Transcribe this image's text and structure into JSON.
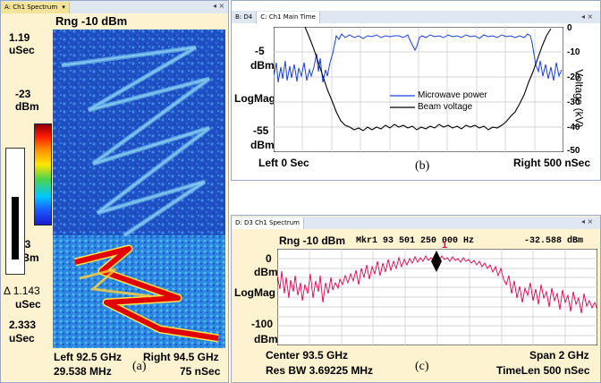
{
  "colors": {
    "tab_bar_bg": "#dfe7f2",
    "tab_active_bg": "#f4e39a",
    "panel_a_bg": "#fdf3d0",
    "panel_c_bg": "#fdf3d0",
    "spectro_bg": "#1b4fc0",
    "trace_blue": "#1a3fe0",
    "trace_black": "#000000",
    "trace_red": "#e0004a",
    "grid": "#c8c8c8"
  },
  "panel_a": {
    "tab": "A: Ch1 Spectrum",
    "tab_icon": "chevron-down-icon",
    "range_label": "Rng -10 dBm",
    "top_time_value": "1.19",
    "top_time_unit": "uSec",
    "scale_top_value": "-23",
    "scale_top_unit": "dBm",
    "scale_bottom_value": "-73",
    "scale_bottom_unit": "dBm",
    "delta_value": "Δ 1.143",
    "delta_unit": "uSec",
    "bottom_time_value": "2.333",
    "bottom_time_unit": "uSec",
    "left_freq": "Left 92.5 GHz",
    "left_rbw": "29.538 MHz",
    "right_freq": "Right 94.5 GHz",
    "right_time": "75 nSec",
    "caption": "(a)"
  },
  "panel_b": {
    "tabs": [
      "B: D4",
      "C: Ch1 Main Time"
    ],
    "close_glyph": "◂ ×",
    "left_top_value": "-5",
    "left_top_unit": "dBm",
    "left_mid": "LogMag",
    "left_bottom_value": "-55",
    "left_bottom_unit": "dBm",
    "right_ticks": [
      "0",
      "-10",
      "-20",
      "-30",
      "-40",
      "-50"
    ],
    "right_axis_label": "Voltage (kV)",
    "legend": [
      "Microwave power",
      "Beam voltage"
    ],
    "left_footer": "Left 0  Sec",
    "right_footer": "Right 500 nSec",
    "caption": "(b)"
  },
  "panel_c": {
    "tab": "D: D3 Ch1 Spectrum",
    "close_glyph": "◂ ×",
    "header_left": "Rng -10 dBm",
    "header_mkr": "Mkr1   93 501 250 000 Hz",
    "header_right": "-32.588 dBm",
    "top_value": "0",
    "top_unit": "dBm",
    "mid_label": "LogMag",
    "bottom_value": "-100",
    "bottom_unit": "dBm",
    "marker_label": "1",
    "center_freq": "Center 93.5 GHz",
    "res_bw": "Res BW 3.69225 MHz",
    "span": "Span 2 GHz",
    "timelen": "TimeLen 500 nSec",
    "caption": "(c)"
  }
}
